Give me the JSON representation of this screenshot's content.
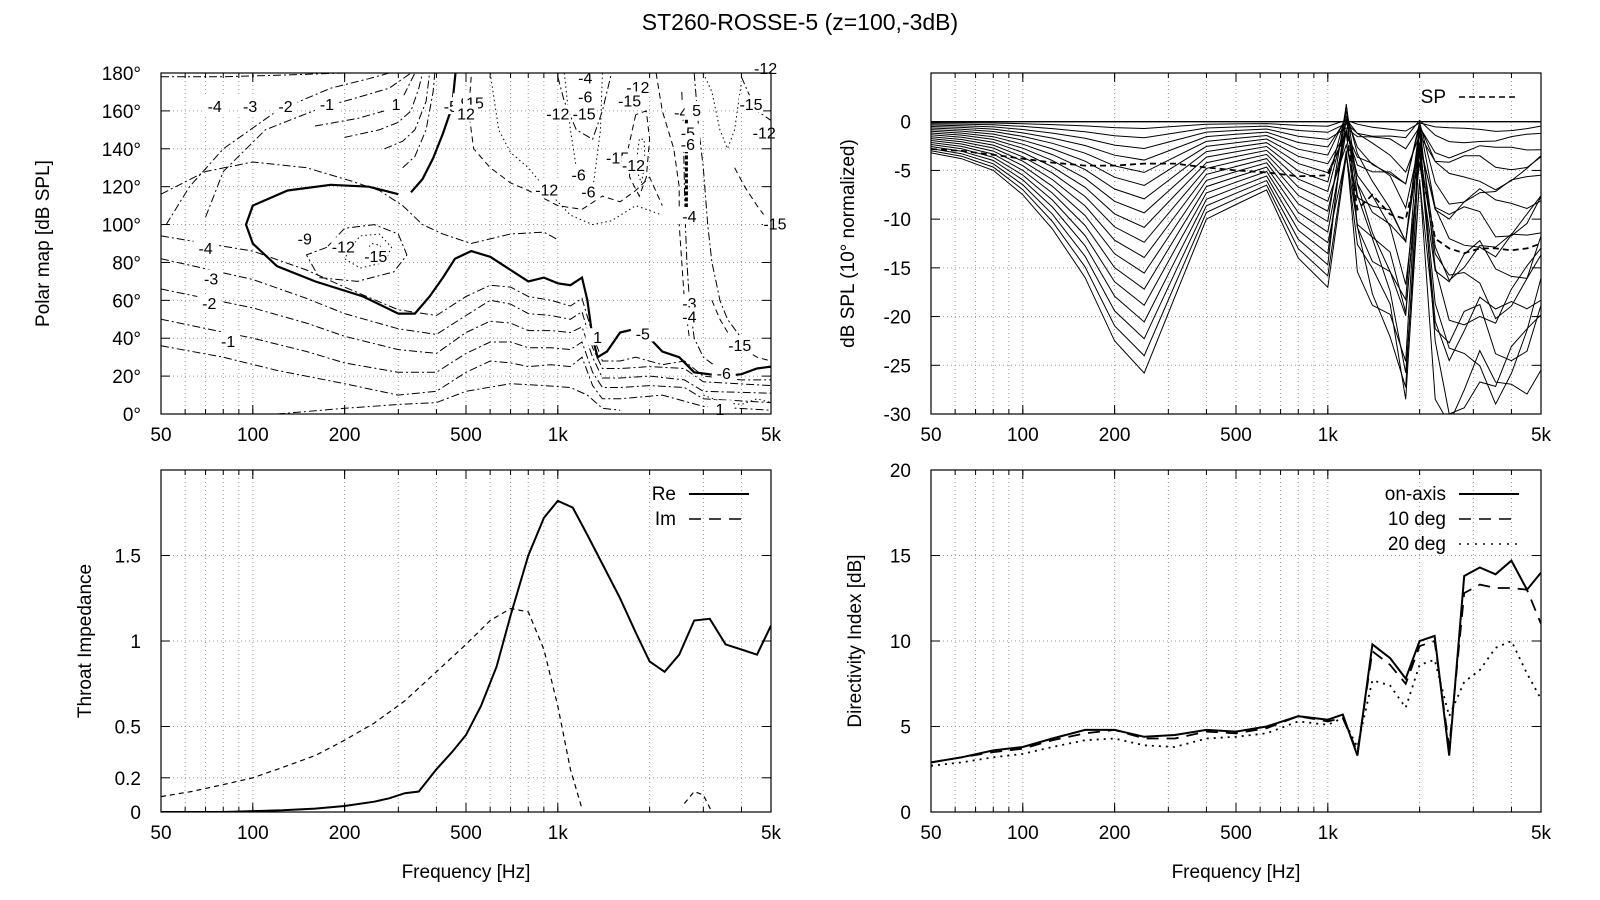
{
  "title": "ST260-ROSSE-5 (z=100,-3dB)",
  "chart_data": [
    {
      "id": "polar",
      "type": "contour",
      "ylabel": "Polar map [dB SPL]",
      "xlabel": "",
      "xscale": "log",
      "xlim": [
        50,
        5000
      ],
      "ylim": [
        0,
        180
      ],
      "xtick_values": [
        50,
        100,
        200,
        500,
        1000,
        5000
      ],
      "xtick_labels": [
        "50",
        "100",
        "200",
        "500",
        "1k",
        "5k"
      ],
      "ytick_values": [
        0,
        20,
        40,
        60,
        80,
        100,
        120,
        140,
        160,
        180
      ],
      "ytick_labels": [
        "0°",
        "20°",
        "40°",
        "60°",
        "80°",
        "100°",
        "120°",
        "140°",
        "160°",
        "180°"
      ],
      "grid": true,
      "contour_labels": [
        {
          "text": "-4",
          "f": 75,
          "deg": 162
        },
        {
          "text": "-3",
          "f": 98,
          "deg": 162
        },
        {
          "text": "-2",
          "f": 128,
          "deg": 162
        },
        {
          "text": "-1",
          "f": 175,
          "deg": 163
        },
        {
          "text": "1",
          "f": 295,
          "deg": 163
        },
        {
          "text": "-5",
          "f": 446,
          "deg": 162
        },
        {
          "text": "9",
          "f": 496,
          "deg": 164
        },
        {
          "text": "15",
          "f": 535,
          "deg": 164
        },
        {
          "text": "12",
          "f": 500,
          "deg": 158
        },
        {
          "text": "-12",
          "f": 1000,
          "deg": 158
        },
        {
          "text": "-15",
          "f": 1220,
          "deg": 158
        },
        {
          "text": "-4",
          "f": 1230,
          "deg": 177
        },
        {
          "text": "-6",
          "f": 1230,
          "deg": 167
        },
        {
          "text": "-12",
          "f": 1830,
          "deg": 172
        },
        {
          "text": "-15",
          "f": 1720,
          "deg": 165
        },
        {
          "text": "-12",
          "f": 4800,
          "deg": 182
        },
        {
          "text": "-15",
          "f": 4300,
          "deg": 163
        },
        {
          "text": "-4",
          "f": 2540,
          "deg": 159
        },
        {
          "text": "5",
          "f": 2850,
          "deg": 160
        },
        {
          "text": "-5",
          "f": 2670,
          "deg": 148
        },
        {
          "text": "-6",
          "f": 2670,
          "deg": 142
        },
        {
          "text": "-12",
          "f": 4750,
          "deg": 148
        },
        {
          "text": "-15",
          "f": 1570,
          "deg": 135
        },
        {
          "text": "-12",
          "f": 1770,
          "deg": 131
        },
        {
          "text": "-6",
          "f": 1170,
          "deg": 126
        },
        {
          "text": "-6",
          "f": 1260,
          "deg": 117
        },
        {
          "text": "-12",
          "f": 920,
          "deg": 118
        },
        {
          "text": "-4",
          "f": 2700,
          "deg": 104
        },
        {
          "text": "-15",
          "f": 5150,
          "deg": 100
        },
        {
          "text": "-9",
          "f": 148,
          "deg": 92
        },
        {
          "text": "-12",
          "f": 198,
          "deg": 88
        },
        {
          "text": "-15",
          "f": 253,
          "deg": 83
        },
        {
          "text": "-4",
          "f": 70,
          "deg": 87
        },
        {
          "text": "-3",
          "f": 73,
          "deg": 71
        },
        {
          "text": "-2",
          "f": 72,
          "deg": 58
        },
        {
          "text": "-1",
          "f": 83,
          "deg": 38
        },
        {
          "text": "-3",
          "f": 2700,
          "deg": 58
        },
        {
          "text": "-4",
          "f": 2700,
          "deg": 51
        },
        {
          "text": "-5",
          "f": 1900,
          "deg": 42
        },
        {
          "text": "-15",
          "f": 3950,
          "deg": 36
        },
        {
          "text": "-6",
          "f": 3500,
          "deg": 21
        },
        {
          "text": "1",
          "f": 3400,
          "deg": 2
        },
        {
          "text": "1",
          "f": 1350,
          "deg": 40
        }
      ]
    },
    {
      "id": "spl",
      "type": "line",
      "ylabel": "dB SPL (10° normalized)",
      "xlabel": "",
      "xscale": "log",
      "xlim": [
        50,
        5000
      ],
      "ylim": [
        -30,
        5
      ],
      "xtick_values": [
        50,
        100,
        200,
        500,
        1000,
        5000
      ],
      "xtick_labels": [
        "50",
        "100",
        "200",
        "500",
        "1k",
        "5k"
      ],
      "ytick_values": [
        0,
        -5,
        -10,
        -15,
        -20,
        -25,
        -30
      ],
      "ytick_labels": [
        "0",
        "-5",
        "-10",
        "-15",
        "-20",
        "-25",
        "-30"
      ],
      "grid": true,
      "legend": {
        "position": "top-right",
        "entries": [
          {
            "label": "SP",
            "style": "dashed"
          }
        ]
      },
      "x": [
        50,
        63,
        80,
        100,
        125,
        160,
        200,
        250,
        315,
        400,
        500,
        630,
        800,
        1000,
        1150,
        1250,
        1400,
        1600,
        1800,
        2000,
        2250,
        2500,
        2800,
        3150,
        3550,
        4000,
        4500,
        5000
      ],
      "sp": [
        -2.8,
        -3.0,
        -3.4,
        -3.8,
        -4.2,
        -4.5,
        -4.5,
        -4.3,
        -4.3,
        -4.7,
        -5.0,
        -5.2,
        -5.6,
        -5.5,
        -1.0,
        -9.0,
        -7.5,
        -9.5,
        -10.0,
        -4.0,
        -12.0,
        -13.0,
        -13.5,
        -13.0,
        -13.0,
        -13.2,
        -13.0,
        -12.5
      ],
      "worst_curve": [
        -3.2,
        -3.8,
        -5.0,
        -7.5,
        -11.0,
        -16.0,
        -22.5,
        -25.8,
        -18.0,
        -10.0,
        -8.5,
        -7.0,
        -14.0,
        -17.0,
        -1.0,
        -13.0,
        -18.0,
        -22.0,
        -29.6,
        -4.0,
        -25.0,
        -30.0,
        -28.0,
        -26.5,
        -30.0,
        -28.0,
        -26.0,
        -22.0
      ],
      "num_curves": 18
    },
    {
      "id": "impedance",
      "type": "line",
      "ylabel": "Throat Impedance",
      "xlabel": "Frequency [Hz]",
      "xscale": "log",
      "xlim": [
        50,
        5000
      ],
      "ylim": [
        0,
        2
      ],
      "xtick_values": [
        50,
        100,
        200,
        500,
        1000,
        5000
      ],
      "xtick_labels": [
        "50",
        "100",
        "200",
        "500",
        "1k",
        "5k"
      ],
      "ytick_values": [
        0,
        0.2,
        0.5,
        1,
        1.5
      ],
      "ytick_labels": [
        "0",
        "0.2",
        "0.5",
        "1",
        "1.5"
      ],
      "grid": true,
      "legend": {
        "position": "top-right"
      },
      "series": [
        {
          "name": "Re",
          "style": "solid",
          "x": [
            50,
            80,
            100,
            125,
            160,
            200,
            250,
            280,
            315,
            350,
            400,
            450,
            500,
            560,
            630,
            700,
            800,
            900,
            1000,
            1120,
            1250,
            1400,
            1600,
            1800,
            2000,
            2240,
            2500,
            2800,
            3150,
            3550,
            4000,
            4500,
            5000
          ],
          "y": [
            0.0,
            0.0,
            0.005,
            0.01,
            0.02,
            0.035,
            0.06,
            0.08,
            0.11,
            0.12,
            0.25,
            0.35,
            0.45,
            0.62,
            0.85,
            1.15,
            1.5,
            1.72,
            1.82,
            1.78,
            1.62,
            1.45,
            1.25,
            1.05,
            0.88,
            0.82,
            0.92,
            1.12,
            1.13,
            0.98,
            0.95,
            0.92,
            1.09
          ]
        },
        {
          "name": "Im",
          "style": "dashed",
          "x": [
            50,
            63,
            80,
            100,
            125,
            160,
            200,
            250,
            315,
            400,
            500,
            600,
            700,
            800,
            900,
            1000,
            1100,
            1200
          ],
          "y": [
            0.09,
            0.12,
            0.16,
            0.2,
            0.26,
            0.33,
            0.42,
            0.52,
            0.65,
            0.82,
            0.98,
            1.12,
            1.19,
            1.17,
            0.95,
            0.62,
            0.25,
            0.02
          ]
        },
        {
          "name": "",
          "style": "dashed",
          "x": [
            2600,
            2800,
            3000,
            3200
          ],
          "y": [
            0.05,
            0.12,
            0.1,
            0.0
          ]
        }
      ]
    },
    {
      "id": "di",
      "type": "line",
      "ylabel": "Directivity Index [dB]",
      "xlabel": "Frequency [Hz]",
      "xscale": "log",
      "xlim": [
        50,
        5000
      ],
      "ylim": [
        0,
        20
      ],
      "xtick_values": [
        50,
        100,
        200,
        500,
        1000,
        5000
      ],
      "xtick_labels": [
        "50",
        "100",
        "200",
        "500",
        "1k",
        "5k"
      ],
      "ytick_values": [
        0,
        5,
        10,
        15,
        20
      ],
      "ytick_labels": [
        "0",
        "5",
        "10",
        "15",
        "20"
      ],
      "grid": true,
      "legend": {
        "position": "top-right"
      },
      "x": [
        50,
        63,
        80,
        100,
        125,
        160,
        200,
        250,
        315,
        400,
        500,
        630,
        800,
        1000,
        1120,
        1250,
        1400,
        1600,
        1800,
        2000,
        2240,
        2500,
        2800,
        3150,
        3550,
        4000,
        4500,
        5000
      ],
      "series": [
        {
          "name": "on-axis",
          "style": "solid",
          "y": [
            2.9,
            3.2,
            3.6,
            3.8,
            4.3,
            4.8,
            4.8,
            4.4,
            4.5,
            4.8,
            4.7,
            5.0,
            5.6,
            5.4,
            5.7,
            3.3,
            9.8,
            9.0,
            7.8,
            10.0,
            10.3,
            3.3,
            13.8,
            14.3,
            13.9,
            14.7,
            13.0,
            14.0
          ]
        },
        {
          "name": "10 deg",
          "style": "dashed",
          "y": [
            2.9,
            3.2,
            3.5,
            3.7,
            4.2,
            4.6,
            4.8,
            4.3,
            4.3,
            4.7,
            4.6,
            4.9,
            5.6,
            5.3,
            5.5,
            3.5,
            9.4,
            8.6,
            7.5,
            9.7,
            10.0,
            3.8,
            12.8,
            13.3,
            13.1,
            13.1,
            13.0,
            11.0
          ]
        },
        {
          "name": "20 deg",
          "style": "dotted",
          "y": [
            2.7,
            2.9,
            3.2,
            3.4,
            3.8,
            4.2,
            4.3,
            3.9,
            3.8,
            4.3,
            4.4,
            4.6,
            5.3,
            5.1,
            5.5,
            3.8,
            7.7,
            7.4,
            6.1,
            8.6,
            8.9,
            5.6,
            7.6,
            8.3,
            9.6,
            10.0,
            8.1,
            6.6
          ]
        }
      ]
    }
  ]
}
